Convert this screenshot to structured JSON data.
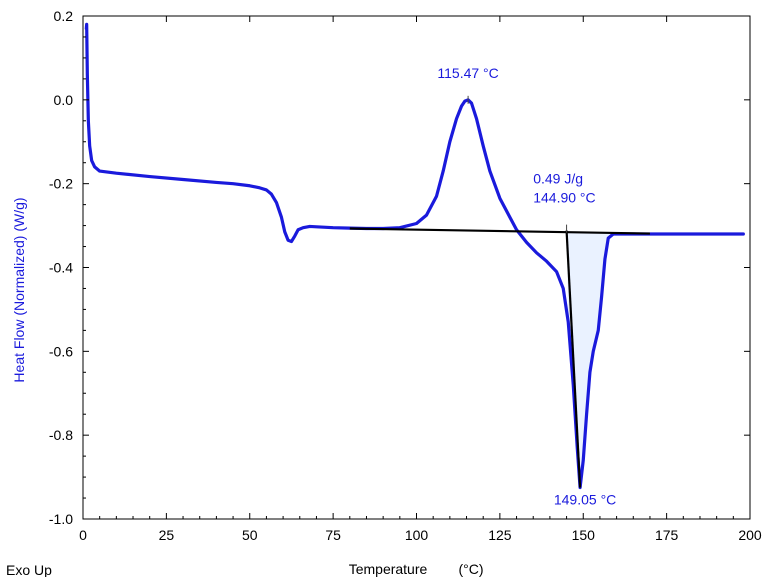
{
  "chart_data": {
    "type": "line",
    "title": "",
    "xlabel": "Temperature",
    "xlabel_unit": "(°C)",
    "ylabel": "Heat Flow (Normalized)  (W/g)",
    "corner_label": "Exo Up",
    "xlim": [
      0,
      200
    ],
    "ylim": [
      -1.0,
      0.2
    ],
    "x_ticks": [
      0,
      25,
      50,
      75,
      100,
      125,
      150,
      175,
      200
    ],
    "y_ticks": [
      0.2,
      0.0,
      -0.2,
      -0.4,
      -0.6,
      -0.8,
      -1.0
    ],
    "y_tick_labels": [
      "0.2",
      "0.0",
      "-0.2",
      "-0.4",
      "-0.6",
      "-0.8",
      "-1.0"
    ],
    "grid": false,
    "series": [
      {
        "color": "#1a1adc",
        "x": [
          1.0,
          1.1,
          1.3,
          1.6,
          2.0,
          2.6,
          3.5,
          5,
          10,
          20,
          30,
          40,
          45,
          50,
          53,
          55,
          56.5,
          58,
          59.5,
          60.5,
          61.5,
          62.5,
          63.5,
          64.5,
          66,
          68,
          70,
          75,
          80,
          85,
          90,
          95,
          100,
          103,
          106,
          108,
          110,
          112,
          113.5,
          114.5,
          115.47,
          116.5,
          118,
          120,
          122,
          125,
          128,
          130,
          133,
          136,
          139,
          142,
          144,
          145.5,
          147,
          148.2,
          149.05,
          150,
          151,
          152,
          153,
          154.5,
          155.5,
          156.5,
          157.5,
          159,
          161,
          165,
          170,
          180,
          190,
          198
        ],
        "y": [
          0.17,
          0.18,
          0.06,
          -0.05,
          -0.11,
          -0.145,
          -0.16,
          -0.17,
          -0.175,
          -0.183,
          -0.19,
          -0.197,
          -0.2,
          -0.205,
          -0.21,
          -0.215,
          -0.225,
          -0.245,
          -0.28,
          -0.315,
          -0.335,
          -0.338,
          -0.325,
          -0.31,
          -0.305,
          -0.302,
          -0.303,
          -0.305,
          -0.306,
          -0.307,
          -0.307,
          -0.305,
          -0.295,
          -0.275,
          -0.23,
          -0.17,
          -0.1,
          -0.045,
          -0.015,
          -0.003,
          0.0,
          -0.008,
          -0.045,
          -0.11,
          -0.17,
          -0.235,
          -0.28,
          -0.31,
          -0.34,
          -0.365,
          -0.385,
          -0.41,
          -0.45,
          -0.53,
          -0.68,
          -0.83,
          -0.925,
          -0.86,
          -0.75,
          -0.65,
          -0.6,
          -0.55,
          -0.47,
          -0.38,
          -0.33,
          -0.32,
          -0.32,
          -0.32,
          -0.32,
          -0.32,
          -0.32,
          -0.32
        ]
      }
    ],
    "baseline": {
      "color": "#000000",
      "x": [
        80,
        170
      ],
      "y": [
        -0.307,
        -0.319
      ]
    },
    "drop_line": {
      "color": "#000000",
      "x": [
        145.0,
        149.05
      ],
      "y": [
        -0.312,
        -0.925
      ]
    },
    "peak_fill": {
      "color": "#eaf2ff",
      "from_x": 145.0,
      "to_x": 158.0
    },
    "annotations": [
      {
        "text": "115.47 °C",
        "x": 115.47,
        "y": 0.0,
        "color": "#1a1adc"
      },
      {
        "text": "0.49 J/g",
        "x": 135,
        "y": -0.2,
        "color": "#1a1adc"
      },
      {
        "text": "144.90 °C",
        "x": 135,
        "y": -0.245,
        "color": "#1a1adc"
      },
      {
        "text": "149.05 °C",
        "x": 149.05,
        "y": -0.925,
        "color": "#1a1adc"
      }
    ]
  }
}
